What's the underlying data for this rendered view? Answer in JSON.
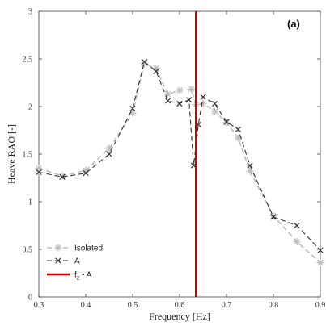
{
  "chart_data": {
    "type": "line",
    "panel_label": "(a)",
    "xlabel": "Frequency [Hz]",
    "ylabel": "Heave RAO [-]",
    "xlim": [
      0.3,
      0.9
    ],
    "ylim": [
      0,
      3
    ],
    "xticks": [
      "0.3",
      "0.4",
      "0.5",
      "0.6",
      "0.7",
      "0.8",
      "0.9"
    ],
    "yticks": [
      "0",
      "0.5",
      "1",
      "1.5",
      "2",
      "2.5",
      "3"
    ],
    "grid": false,
    "legend_position": "bottom-left",
    "series": [
      {
        "name": "Isolated",
        "color": "#bdbdbd",
        "style": "dashed",
        "marker": "asterisk",
        "x": [
          0.3,
          0.35,
          0.4,
          0.45,
          0.5,
          0.525,
          0.55,
          0.575,
          0.6,
          0.625,
          0.635,
          0.65,
          0.675,
          0.7,
          0.725,
          0.75,
          0.8,
          0.85,
          0.9
        ],
        "y": [
          1.35,
          1.27,
          1.33,
          1.56,
          1.93,
          2.45,
          2.4,
          2.13,
          2.17,
          2.18,
          2.02,
          2.03,
          1.95,
          1.83,
          1.67,
          1.32,
          0.85,
          0.58,
          0.36
        ]
      },
      {
        "name": "A",
        "color": "#333333",
        "style": "dashed",
        "marker": "x",
        "x": [
          0.3,
          0.35,
          0.4,
          0.45,
          0.5,
          0.525,
          0.55,
          0.575,
          0.6,
          0.62,
          0.63,
          0.64,
          0.65,
          0.675,
          0.7,
          0.725,
          0.75,
          0.8,
          0.85,
          0.9
        ],
        "y": [
          1.31,
          1.26,
          1.3,
          1.5,
          1.98,
          2.47,
          2.37,
          2.06,
          2.03,
          2.07,
          1.38,
          1.81,
          2.1,
          2.03,
          1.84,
          1.76,
          1.38,
          0.84,
          0.75,
          0.49
        ]
      }
    ],
    "vertical_lines": [
      {
        "name": "f_z - A",
        "x": 0.635,
        "color": "#cc0000"
      }
    ],
    "legend": [
      {
        "label": "Isolated"
      },
      {
        "label": "A"
      },
      {
        "label": "f",
        "subscript": "z",
        "suffix": " - A"
      }
    ]
  }
}
